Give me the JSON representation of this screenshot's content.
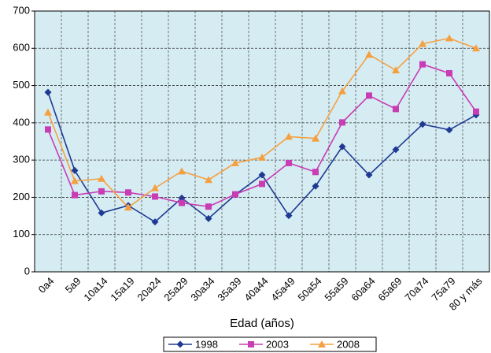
{
  "chart_data": {
    "type": "line",
    "x_label": "Edad (años)",
    "categories": [
      "0a4",
      "5a9",
      "10a14",
      "15a19",
      "20a24",
      "25a29",
      "30a34",
      "35a39",
      "40a44",
      "45a49",
      "50a54",
      "55a59",
      "60a64",
      "65a69",
      "70a74",
      "75a79",
      "80 y más"
    ],
    "series": [
      {
        "name": "1998",
        "color": "#1f3a93",
        "marker": "diamond",
        "values": [
          482,
          272,
          158,
          178,
          134,
          198,
          143,
          207,
          260,
          151,
          230,
          336,
          260,
          328,
          396,
          381,
          421
        ]
      },
      {
        "name": "2003",
        "color": "#c83cb4",
        "marker": "square",
        "values": [
          382,
          206,
          216,
          213,
          202,
          185,
          175,
          208,
          236,
          292,
          268,
          401,
          473,
          437,
          557,
          533,
          430
        ]
      },
      {
        "name": "2008",
        "color": "#f5a040",
        "marker": "triangle",
        "values": [
          428,
          244,
          250,
          173,
          225,
          270,
          247,
          292,
          307,
          363,
          358,
          485,
          583,
          541,
          612,
          627,
          600
        ]
      }
    ],
    "ylim": [
      0,
      700
    ],
    "yticks": [
      0,
      100,
      200,
      300,
      400,
      500,
      600,
      700
    ],
    "grid": true
  }
}
